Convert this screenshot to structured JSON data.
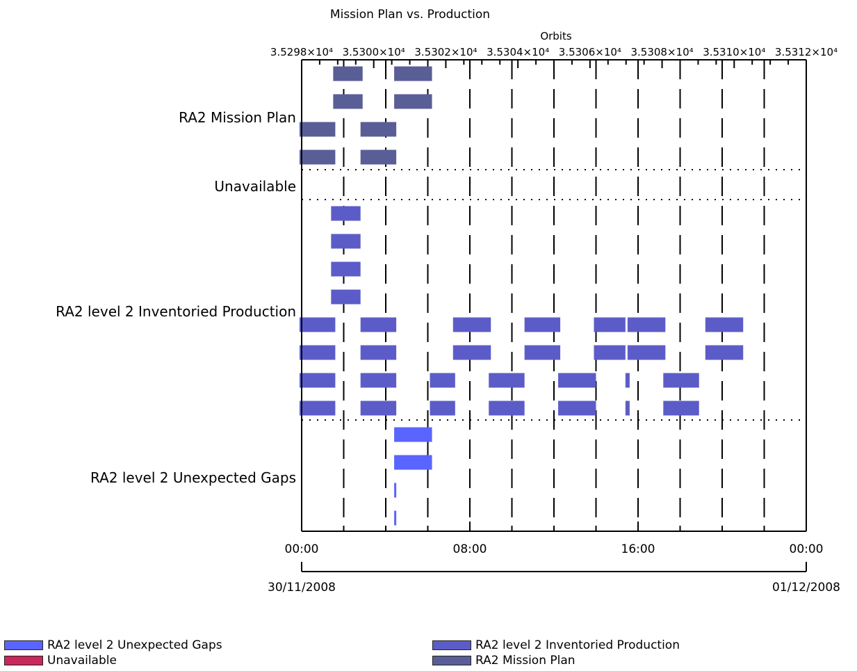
{
  "chart_data": {
    "type": "gantt",
    "title": "Mission Plan vs. Production",
    "top_axis": {
      "label": "Orbits",
      "tick_labels": [
        "3.5298×10⁴",
        "3.5300×10⁴",
        "3.5302×10⁴",
        "3.5304×10⁴",
        "3.5306×10⁴",
        "3.5308×10⁴",
        "3.5310×10⁴",
        "3.5312×10⁴"
      ],
      "range": [
        35298,
        35312
      ]
    },
    "bottom_axis": {
      "tick_labels": [
        "00:00",
        "08:00",
        "16:00",
        "00:00"
      ],
      "tick_hours": [
        0,
        8,
        16,
        24
      ],
      "start_date": "30/11/2008",
      "end_date": "01/12/2008",
      "range_hours": [
        0,
        24
      ]
    },
    "rows": [
      {
        "label": "RA2 Mission Plan",
        "color": "#5a5e96",
        "lanes": 4
      },
      {
        "label": "Unavailable",
        "color": "#c8285a",
        "lanes": 1
      },
      {
        "label": "RA2 level 2 Inventoried Production",
        "color": "#5c5cc8",
        "lanes": 8
      },
      {
        "label": "RA2 level 2 Unexpected Gaps",
        "color": "#5a64ff",
        "lanes": 4
      }
    ],
    "intervals": [
      {
        "row": 0,
        "lane": 0,
        "start": 1.5,
        "end": 2.9
      },
      {
        "row": 0,
        "lane": 0,
        "start": 4.4,
        "end": 6.2
      },
      {
        "row": 0,
        "lane": 1,
        "start": 1.5,
        "end": 2.9
      },
      {
        "row": 0,
        "lane": 1,
        "start": 4.4,
        "end": 6.2
      },
      {
        "row": 0,
        "lane": 2,
        "start": -0.1,
        "end": 1.6
      },
      {
        "row": 0,
        "lane": 2,
        "start": 2.8,
        "end": 4.5
      },
      {
        "row": 0,
        "lane": 3,
        "start": -0.1,
        "end": 1.6
      },
      {
        "row": 0,
        "lane": 3,
        "start": 2.8,
        "end": 4.5
      },
      {
        "row": 2,
        "lane": 0,
        "start": 1.4,
        "end": 2.8
      },
      {
        "row": 2,
        "lane": 1,
        "start": 1.4,
        "end": 2.8
      },
      {
        "row": 2,
        "lane": 2,
        "start": 1.4,
        "end": 2.8
      },
      {
        "row": 2,
        "lane": 3,
        "start": 1.4,
        "end": 2.8
      },
      {
        "row": 2,
        "lane": 4,
        "start": -0.1,
        "end": 1.6
      },
      {
        "row": 2,
        "lane": 4,
        "start": 2.8,
        "end": 4.5
      },
      {
        "row": 2,
        "lane": 4,
        "start": 7.2,
        "end": 9.0
      },
      {
        "row": 2,
        "lane": 4,
        "start": 10.6,
        "end": 12.3
      },
      {
        "row": 2,
        "lane": 4,
        "start": 13.9,
        "end": 15.4
      },
      {
        "row": 2,
        "lane": 4,
        "start": 15.5,
        "end": 17.3
      },
      {
        "row": 2,
        "lane": 4,
        "start": 19.2,
        "end": 21.0
      },
      {
        "row": 2,
        "lane": 5,
        "start": -0.1,
        "end": 1.6
      },
      {
        "row": 2,
        "lane": 5,
        "start": 2.8,
        "end": 4.5
      },
      {
        "row": 2,
        "lane": 5,
        "start": 7.2,
        "end": 9.0
      },
      {
        "row": 2,
        "lane": 5,
        "start": 10.6,
        "end": 12.3
      },
      {
        "row": 2,
        "lane": 5,
        "start": 13.9,
        "end": 15.4
      },
      {
        "row": 2,
        "lane": 5,
        "start": 15.5,
        "end": 17.3
      },
      {
        "row": 2,
        "lane": 5,
        "start": 19.2,
        "end": 21.0
      },
      {
        "row": 2,
        "lane": 6,
        "start": -0.1,
        "end": 1.6
      },
      {
        "row": 2,
        "lane": 6,
        "start": 2.8,
        "end": 4.5
      },
      {
        "row": 2,
        "lane": 6,
        "start": 6.1,
        "end": 7.3
      },
      {
        "row": 2,
        "lane": 6,
        "start": 8.9,
        "end": 10.6
      },
      {
        "row": 2,
        "lane": 6,
        "start": 12.2,
        "end": 14.0
      },
      {
        "row": 2,
        "lane": 6,
        "start": 15.4,
        "end": 15.6
      },
      {
        "row": 2,
        "lane": 6,
        "start": 17.2,
        "end": 18.9
      },
      {
        "row": 2,
        "lane": 7,
        "start": -0.1,
        "end": 1.6
      },
      {
        "row": 2,
        "lane": 7,
        "start": 2.8,
        "end": 4.5
      },
      {
        "row": 2,
        "lane": 7,
        "start": 6.1,
        "end": 7.3
      },
      {
        "row": 2,
        "lane": 7,
        "start": 8.9,
        "end": 10.6
      },
      {
        "row": 2,
        "lane": 7,
        "start": 12.2,
        "end": 14.0
      },
      {
        "row": 2,
        "lane": 7,
        "start": 15.4,
        "end": 15.6
      },
      {
        "row": 2,
        "lane": 7,
        "start": 17.2,
        "end": 18.9
      },
      {
        "row": 3,
        "lane": 0,
        "start": 4.4,
        "end": 6.2
      },
      {
        "row": 3,
        "lane": 1,
        "start": 4.4,
        "end": 6.2
      },
      {
        "row": 3,
        "lane": 2,
        "start": 4.4,
        "end": 4.5
      },
      {
        "row": 3,
        "lane": 3,
        "start": 4.4,
        "end": 4.5
      }
    ],
    "legend": [
      {
        "label": "RA2 level 2 Unexpected Gaps",
        "color": "#5a64ff"
      },
      {
        "label": "Unavailable",
        "color": "#c8285a"
      },
      {
        "label": "RA2 level 2 Inventoried Production",
        "color": "#5c5cc8"
      },
      {
        "label": "RA2 Mission Plan",
        "color": "#5a5e96"
      }
    ]
  }
}
